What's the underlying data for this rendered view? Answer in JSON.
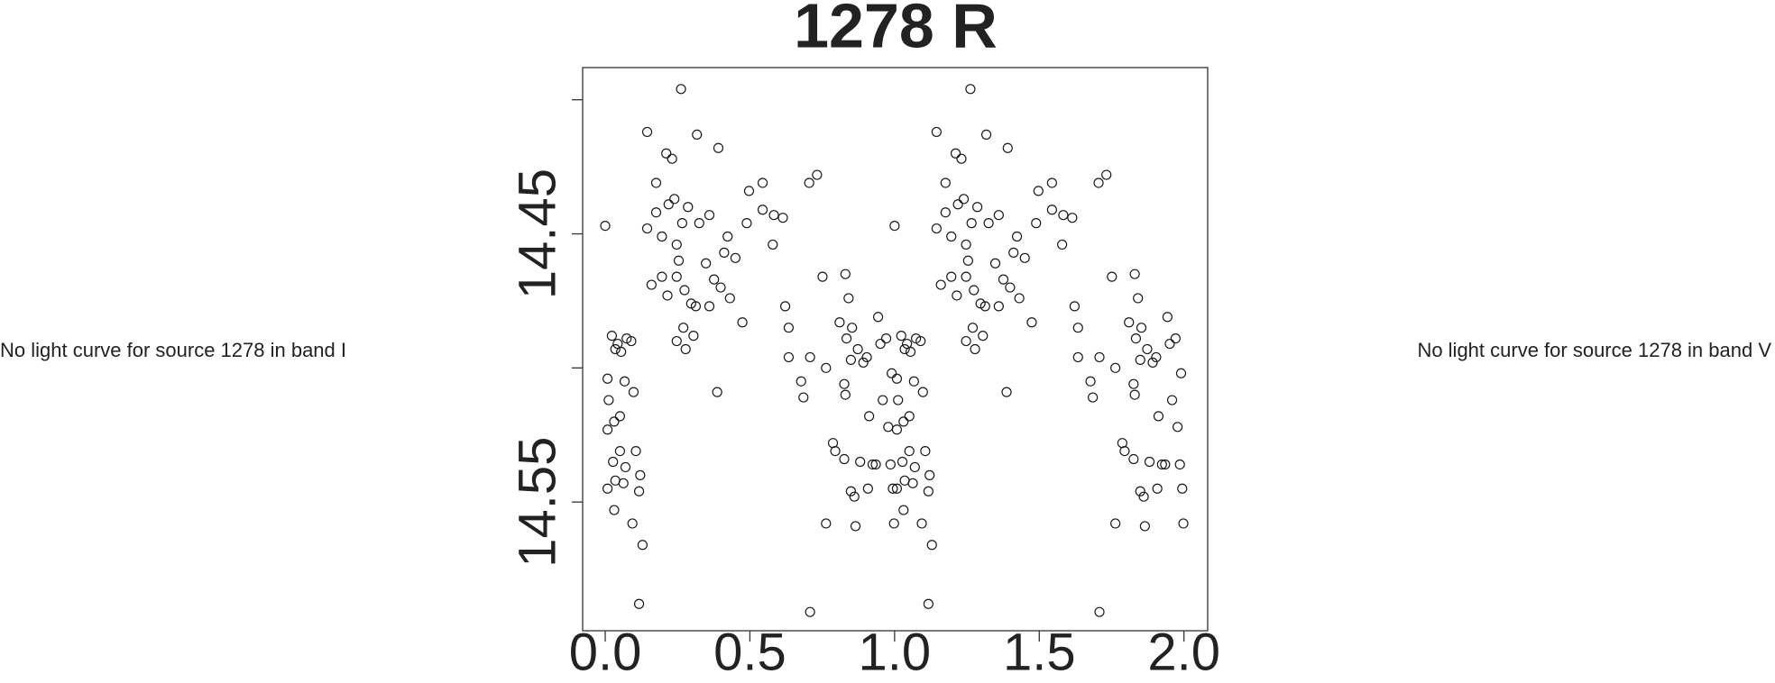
{
  "notes": [
    "No light curve for source 1278 in band I",
    "No light curve for source 1278 in band V"
  ],
  "chart_data": {
    "type": "scatter",
    "title": "1278 R",
    "x": [
      0.0,
      0.008,
      0.023,
      0.035,
      0.043,
      0.055,
      0.074,
      0.09,
      0.067,
      0.098,
      0.012,
      0.031,
      0.051,
      0.008,
      0.027,
      0.051,
      0.07,
      0.008,
      0.035,
      0.063,
      0.031,
      0.094,
      0.106,
      0.121,
      0.117,
      0.129,
      0.117,
      0.145,
      0.145,
      0.16,
      0.176,
      0.176,
      0.196,
      0.211,
      0.219,
      0.231,
      0.239,
      0.247,
      0.254,
      0.247,
      0.266,
      0.262,
      0.274,
      0.286,
      0.27,
      0.247,
      0.278,
      0.196,
      0.215,
      0.297,
      0.313,
      0.305,
      0.317,
      0.325,
      0.348,
      0.36,
      0.36,
      0.391,
      0.376,
      0.399,
      0.387,
      0.411,
      0.423,
      0.431,
      0.45,
      0.474,
      0.489,
      0.497,
      0.544,
      0.544,
      0.583,
      0.579,
      0.614,
      0.622,
      0.634,
      0.634,
      0.677,
      0.685,
      0.705,
      0.708,
      0.732,
      0.708,
      0.751,
      0.763,
      0.763,
      0.787,
      0.795,
      0.826,
      0.81,
      0.83,
      0.834,
      0.826,
      0.83,
      0.841,
      0.849,
      0.853,
      0.849,
      0.861,
      0.865,
      0.873,
      0.881,
      0.892,
      0.904,
      0.908,
      0.912,
      0.924,
      0.935,
      0.943,
      0.951,
      0.959,
      0.971,
      0.978,
      0.986,
      0.998,
      0.994,
      0.99,
      1.0,
      1.008,
      1.023,
      1.035,
      1.043,
      1.055,
      1.074,
      1.09,
      1.067,
      1.098,
      1.012,
      1.031,
      1.051,
      1.008,
      1.027,
      1.051,
      1.07,
      1.008,
      1.035,
      1.063,
      1.031,
      1.094,
      1.106,
      1.121,
      1.117,
      1.129,
      1.117,
      1.145,
      1.145,
      1.16,
      1.176,
      1.176,
      1.196,
      1.211,
      1.219,
      1.231,
      1.239,
      1.247,
      1.254,
      1.247,
      1.266,
      1.262,
      1.274,
      1.286,
      1.27,
      1.247,
      1.278,
      1.196,
      1.215,
      1.297,
      1.313,
      1.305,
      1.317,
      1.325,
      1.348,
      1.36,
      1.36,
      1.391,
      1.376,
      1.399,
      1.387,
      1.411,
      1.423,
      1.431,
      1.45,
      1.474,
      1.489,
      1.497,
      1.544,
      1.544,
      1.583,
      1.579,
      1.614,
      1.622,
      1.634,
      1.634,
      1.677,
      1.685,
      1.705,
      1.708,
      1.732,
      1.708,
      1.751,
      1.763,
      1.763,
      1.787,
      1.795,
      1.826,
      1.81,
      1.83,
      1.834,
      1.826,
      1.83,
      1.841,
      1.849,
      1.853,
      1.849,
      1.861,
      1.865,
      1.873,
      1.881,
      1.892,
      1.904,
      1.908,
      1.912,
      1.924,
      1.935,
      1.943,
      1.951,
      1.959,
      1.971,
      1.978,
      1.986,
      1.998,
      1.994,
      1.99
    ],
    "values": [
      14.447,
      14.504,
      14.488,
      14.493,
      14.491,
      14.494,
      14.489,
      14.49,
      14.505,
      14.509,
      14.512,
      14.52,
      14.518,
      14.523,
      14.535,
      14.531,
      14.537,
      14.545,
      14.542,
      14.543,
      14.553,
      14.558,
      14.531,
      14.54,
      14.546,
      14.566,
      14.588,
      14.412,
      14.448,
      14.469,
      14.431,
      14.442,
      14.451,
      14.42,
      14.439,
      14.422,
      14.437,
      14.454,
      14.46,
      14.466,
      14.446,
      14.396,
      14.471,
      14.44,
      14.485,
      14.49,
      14.493,
      14.466,
      14.473,
      14.476,
      14.477,
      14.488,
      14.413,
      14.446,
      14.461,
      14.443,
      14.477,
      14.418,
      14.467,
      14.47,
      14.509,
      14.457,
      14.451,
      14.474,
      14.459,
      14.483,
      14.446,
      14.434,
      14.431,
      14.441,
      14.443,
      14.454,
      14.444,
      14.477,
      14.485,
      14.496,
      14.505,
      14.511,
      14.431,
      14.496,
      14.428,
      14.591,
      14.466,
      14.5,
      14.558,
      14.528,
      14.531,
      14.534,
      14.483,
      14.465,
      14.489,
      14.506,
      14.51,
      14.474,
      14.497,
      14.485,
      14.546,
      14.548,
      14.559,
      14.493,
      14.535,
      14.498,
      14.496,
      14.545,
      14.518,
      14.536,
      14.536,
      14.481,
      14.491,
      14.512,
      14.489,
      14.522,
      14.536,
      14.558,
      14.545,
      14.502,
      14.447,
      14.504,
      14.488,
      14.493,
      14.491,
      14.494,
      14.489,
      14.49,
      14.505,
      14.509,
      14.512,
      14.52,
      14.518,
      14.523,
      14.535,
      14.531,
      14.537,
      14.545,
      14.542,
      14.543,
      14.553,
      14.558,
      14.531,
      14.54,
      14.546,
      14.566,
      14.588,
      14.412,
      14.448,
      14.469,
      14.431,
      14.442,
      14.451,
      14.42,
      14.439,
      14.422,
      14.437,
      14.454,
      14.46,
      14.466,
      14.446,
      14.396,
      14.471,
      14.44,
      14.485,
      14.49,
      14.493,
      14.466,
      14.473,
      14.476,
      14.477,
      14.488,
      14.413,
      14.446,
      14.461,
      14.443,
      14.477,
      14.418,
      14.467,
      14.47,
      14.509,
      14.457,
      14.451,
      14.474,
      14.459,
      14.483,
      14.446,
      14.434,
      14.431,
      14.441,
      14.443,
      14.454,
      14.444,
      14.477,
      14.485,
      14.496,
      14.505,
      14.511,
      14.431,
      14.496,
      14.428,
      14.591,
      14.466,
      14.5,
      14.558,
      14.528,
      14.531,
      14.534,
      14.483,
      14.465,
      14.489,
      14.506,
      14.51,
      14.474,
      14.497,
      14.485,
      14.546,
      14.548,
      14.559,
      14.493,
      14.535,
      14.498,
      14.496,
      14.545,
      14.518,
      14.536,
      14.536,
      14.481,
      14.491,
      14.512,
      14.489,
      14.522,
      14.536,
      14.558,
      14.545,
      14.502
    ],
    "color": "#1a1a1a",
    "xlim": [
      -0.078,
      2.082
    ],
    "ylim": [
      14.598,
      14.388
    ],
    "xticks": [
      {
        "value": 0,
        "label": "0.0"
      },
      0.5,
      {
        "value": 1,
        "label": "1.0"
      },
      1.5,
      {
        "value": 2,
        "label": "2.0"
      }
    ],
    "yticks": [
      14.45,
      14.55
    ],
    "yminor_ticks": [
      14.4,
      14.5
    ]
  }
}
